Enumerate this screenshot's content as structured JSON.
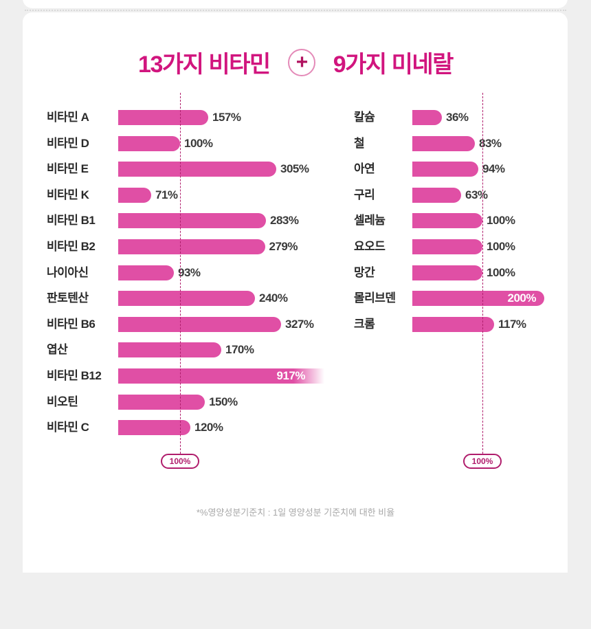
{
  "title": {
    "left": "13가지 비타민",
    "plus": "+",
    "right": "9가지 미네랄"
  },
  "chart_data": [
    {
      "type": "bar",
      "orientation": "horizontal",
      "title": "13가지 비타민",
      "reference": {
        "value": 100,
        "label": "100%"
      },
      "categories": [
        "비타민 A",
        "비타민 D",
        "비타민 E",
        "비타민 K",
        "비타민 B1",
        "비타민 B2",
        "나이아신",
        "판토텐산",
        "비타민 B6",
        "엽산",
        "비타민 B12",
        "비오틴",
        "비타민 C"
      ],
      "values": [
        157,
        100,
        305,
        71,
        283,
        279,
        93,
        240,
        327,
        170,
        917,
        150,
        120
      ],
      "value_labels": [
        "157%",
        "100%",
        "305%",
        "71%",
        "283%",
        "279%",
        "93%",
        "240%",
        "327%",
        "170%",
        "917%",
        "150%",
        "120%"
      ],
      "unit": "%"
    },
    {
      "type": "bar",
      "orientation": "horizontal",
      "title": "9가지 미네랄",
      "reference": {
        "value": 100,
        "label": "100%"
      },
      "categories": [
        "칼슘",
        "철",
        "아연",
        "구리",
        "셀레늄",
        "요오드",
        "망간",
        "몰리브덴",
        "크롬"
      ],
      "values": [
        36,
        83,
        94,
        63,
        100,
        100,
        100,
        200,
        117
      ],
      "value_labels": [
        "36%",
        "83%",
        "94%",
        "63%",
        "100%",
        "100%",
        "100%",
        "200%",
        "117%"
      ],
      "unit": "%"
    }
  ],
  "footnote": "*%영양성분기준치 : 1일 영양성분 기준치에 대한 비율",
  "colors": {
    "title": "#d1157e",
    "bar": "#e04fa5",
    "reference": "#b01d6c"
  }
}
